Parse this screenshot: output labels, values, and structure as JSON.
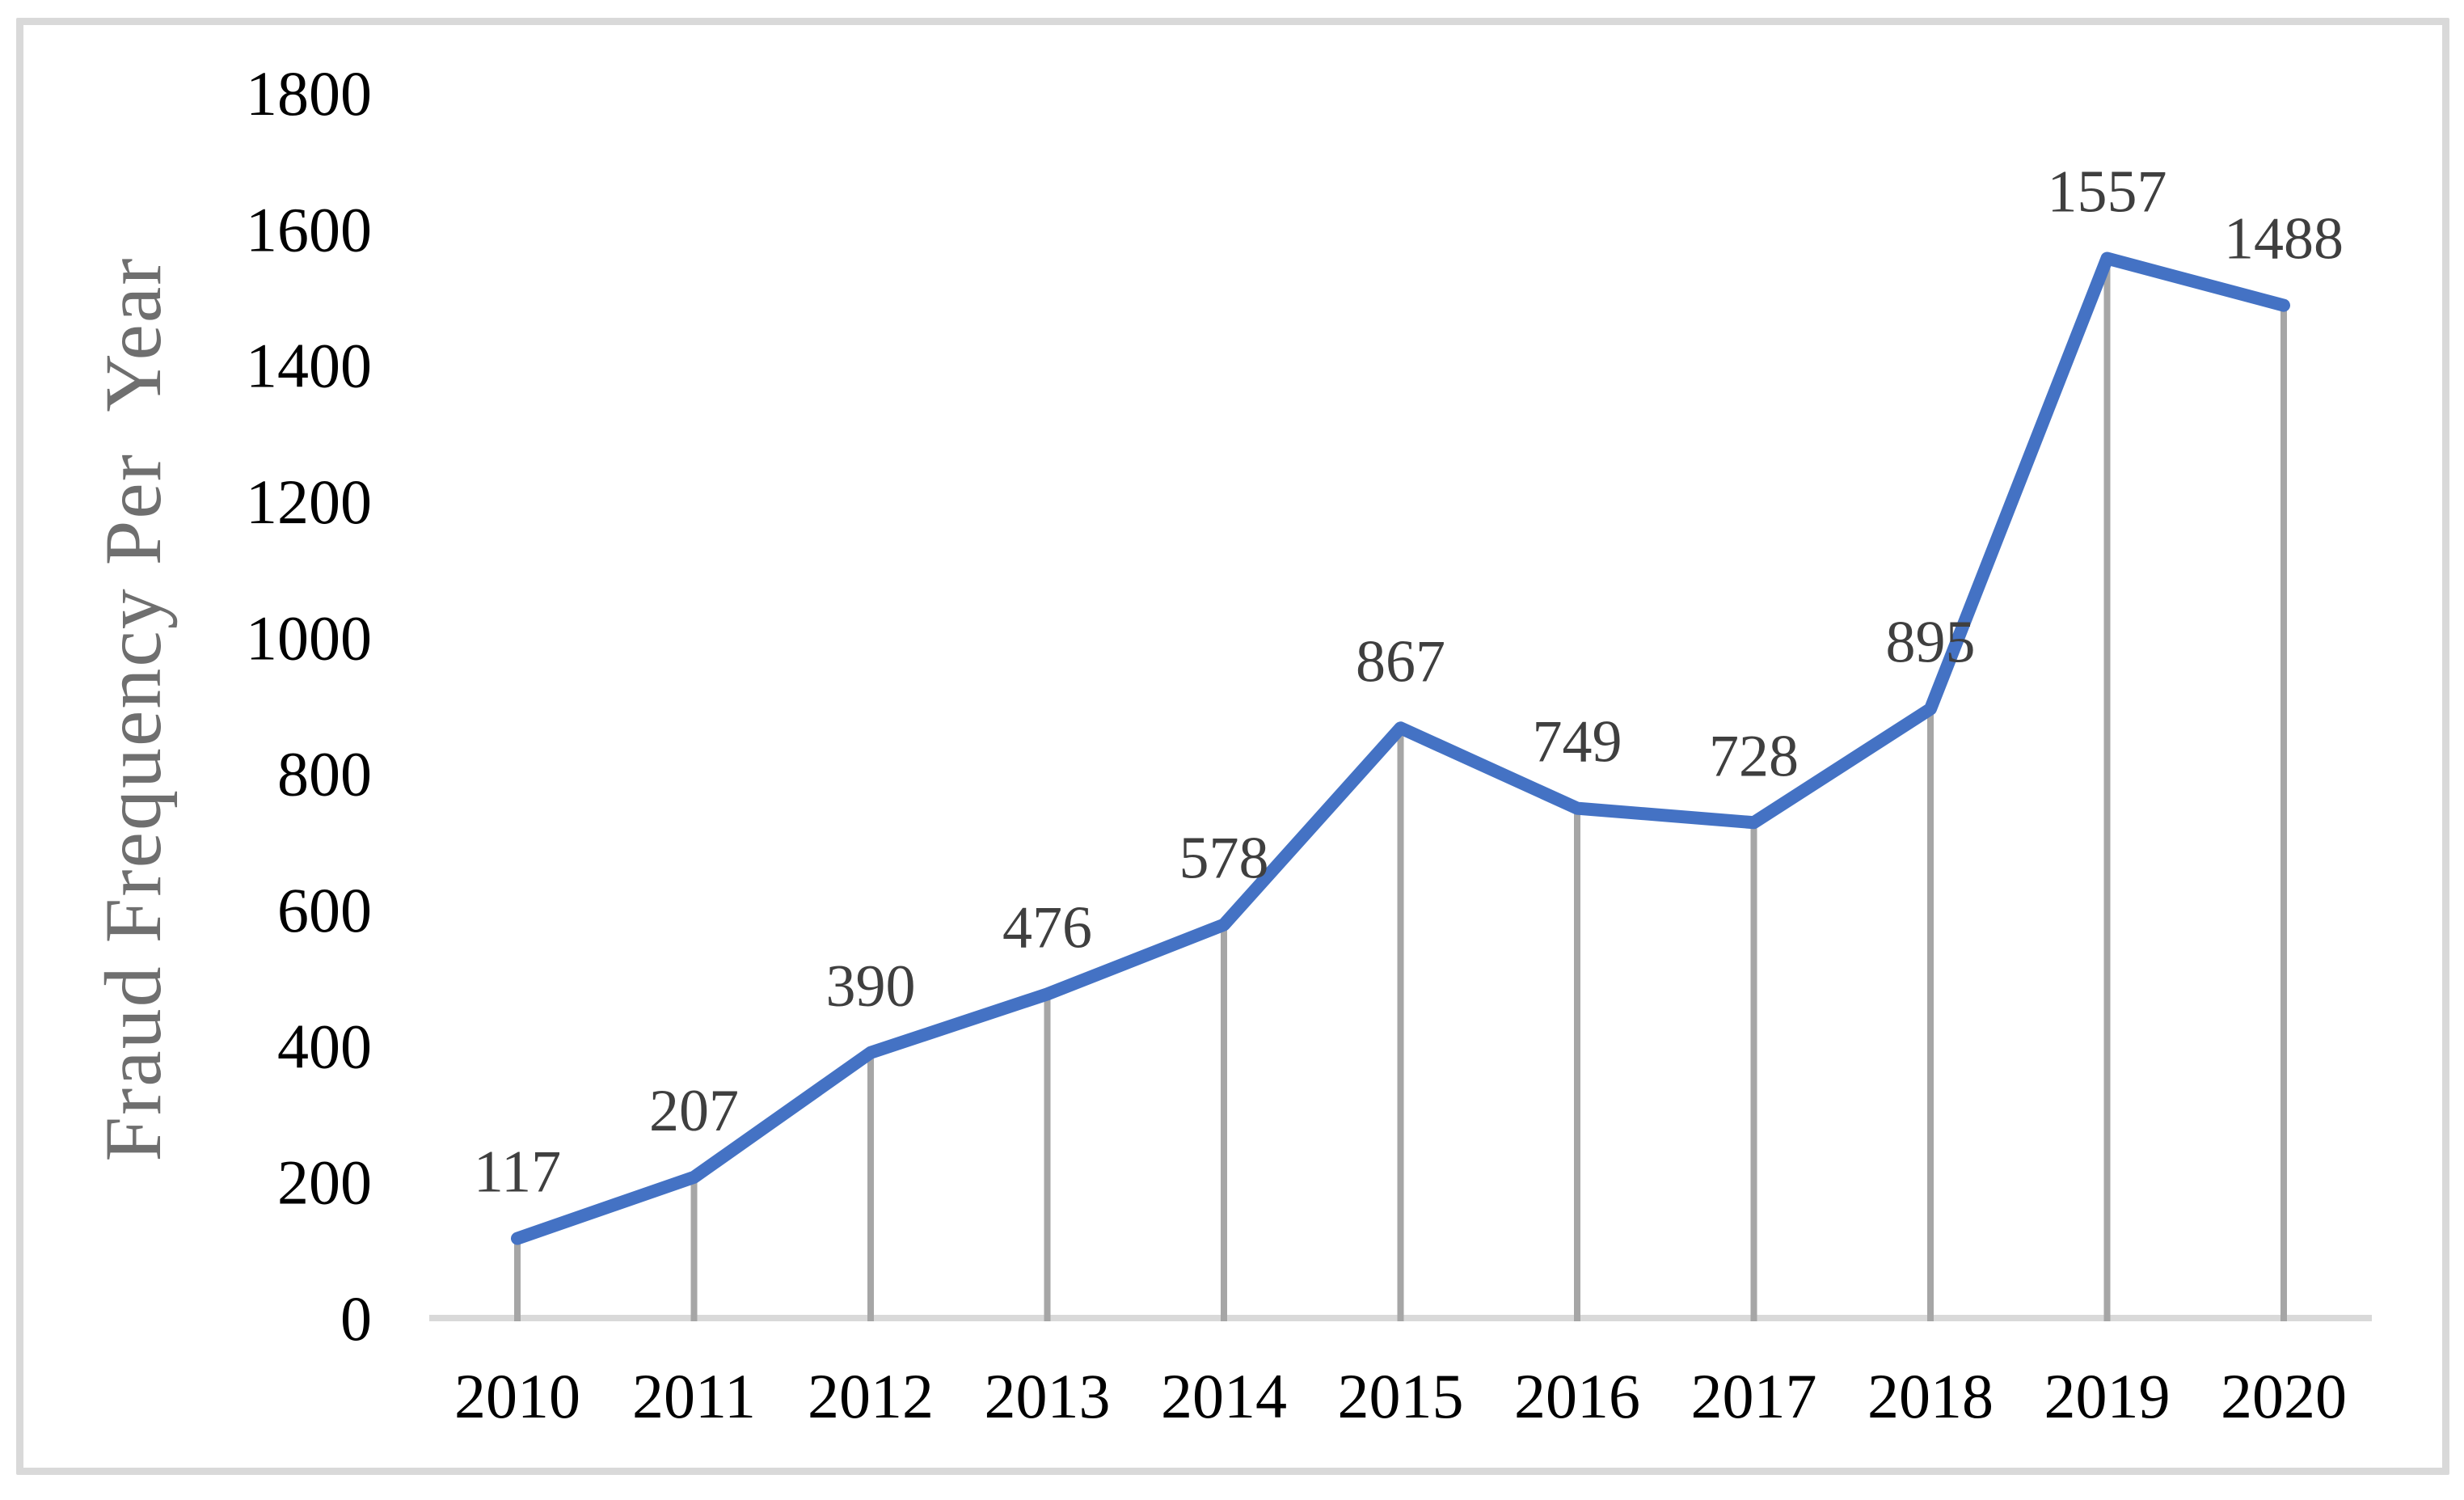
{
  "figure": {
    "background": "#FFFFFF",
    "border_color": "#D9D9D9"
  },
  "chart_data": {
    "type": "line",
    "title": "",
    "categories": [
      "2010",
      "2011",
      "2012",
      "2013",
      "2014",
      "2015",
      "2016",
      "2017",
      "2018",
      "2019",
      "2020"
    ],
    "values": [
      117,
      207,
      390,
      476,
      578,
      867,
      749,
      728,
      895,
      1557,
      1488
    ],
    "data_labels": [
      "117",
      "207",
      "390",
      "476",
      "578",
      "867",
      "749",
      "728",
      "895",
      "1557",
      "1488"
    ],
    "xlabel": "",
    "ylabel": "Fraud Frequency Per  Year",
    "ylim": [
      0,
      1800
    ],
    "yticks": [
      0,
      200,
      400,
      600,
      800,
      1000,
      1200,
      1400,
      1600,
      1800
    ],
    "grid": "off",
    "legend": "none",
    "markers": "none",
    "drop_lines": "on",
    "colors": {
      "line": "#4472C4",
      "drop_line": "#A6A6A6",
      "axis_line": "#D9D9D9",
      "tick_labels": "#000000",
      "data_labels": "#3F3F3F",
      "axis_title": "#6F6F6F",
      "frame_border": "#D9D9D9",
      "background": "#FFFFFF"
    }
  }
}
